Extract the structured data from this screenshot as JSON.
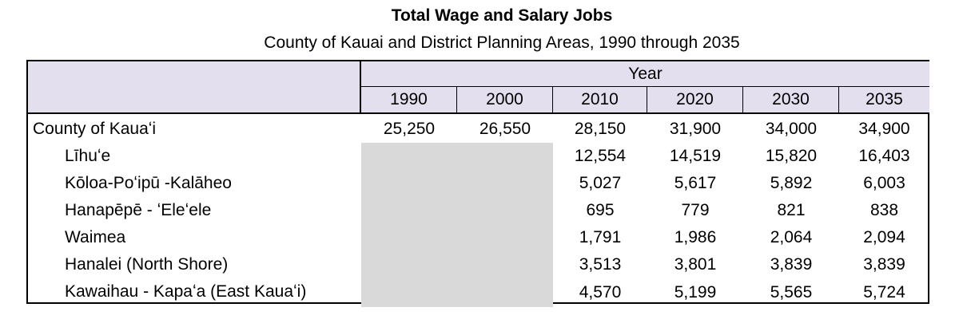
{
  "header": {
    "title": "Total Wage and Salary Jobs",
    "subtitle": "County of Kauai and District Planning Areas, 1990 through 2035"
  },
  "table": {
    "group_header": "Year",
    "columns": [
      "1990",
      "2000",
      "2010",
      "2020",
      "2030",
      "2035"
    ],
    "rows": [
      {
        "label": "County of Kauaʻi",
        "values": [
          "25,250",
          "26,550",
          "28,150",
          "31,900",
          "34,000",
          "34,900"
        ]
      },
      {
        "label": "Līhuʻe",
        "values": [
          null,
          null,
          "12,554",
          "14,519",
          "15,820",
          "16,403"
        ]
      },
      {
        "label": "Kōloa-Poʻipū -Kalāheo",
        "values": [
          null,
          null,
          "5,027",
          "5,617",
          "5,892",
          "6,003"
        ]
      },
      {
        "label": "Hanapēpē - ʻEleʻele",
        "values": [
          null,
          null,
          "695",
          "779",
          "821",
          "838"
        ]
      },
      {
        "label": "Waimea",
        "values": [
          null,
          null,
          "1,791",
          "1,986",
          "2,064",
          "2,094"
        ]
      },
      {
        "label": "Hanalei (North Shore)",
        "values": [
          null,
          null,
          "3,513",
          "3,801",
          "3,839",
          "3,839"
        ]
      },
      {
        "label": "Kawaihau - Kapaʻa (East Kauaʻi)",
        "values": [
          null,
          null,
          "4,570",
          "5,199",
          "5,565",
          "5,724"
        ]
      }
    ]
  }
}
